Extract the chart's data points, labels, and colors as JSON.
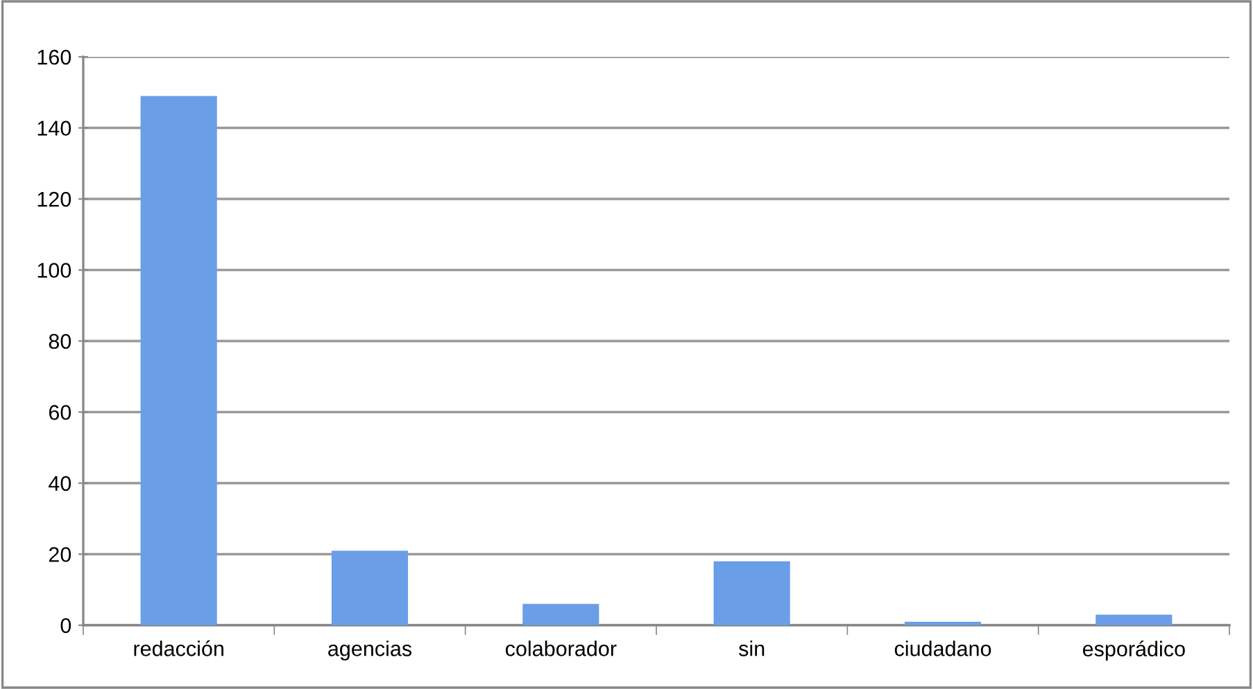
{
  "chart_data": {
    "type": "bar",
    "categories": [
      "redacción",
      "agencias",
      "colaborador",
      "sin",
      "ciudadano",
      "esporádico"
    ],
    "values": [
      149,
      21,
      6,
      18,
      1,
      3
    ],
    "color": "#6a9ee6",
    "ylim": [
      0,
      160
    ],
    "yticks": [
      0,
      20,
      40,
      60,
      80,
      100,
      120,
      140,
      160
    ],
    "grid": "y",
    "legend": false
  }
}
